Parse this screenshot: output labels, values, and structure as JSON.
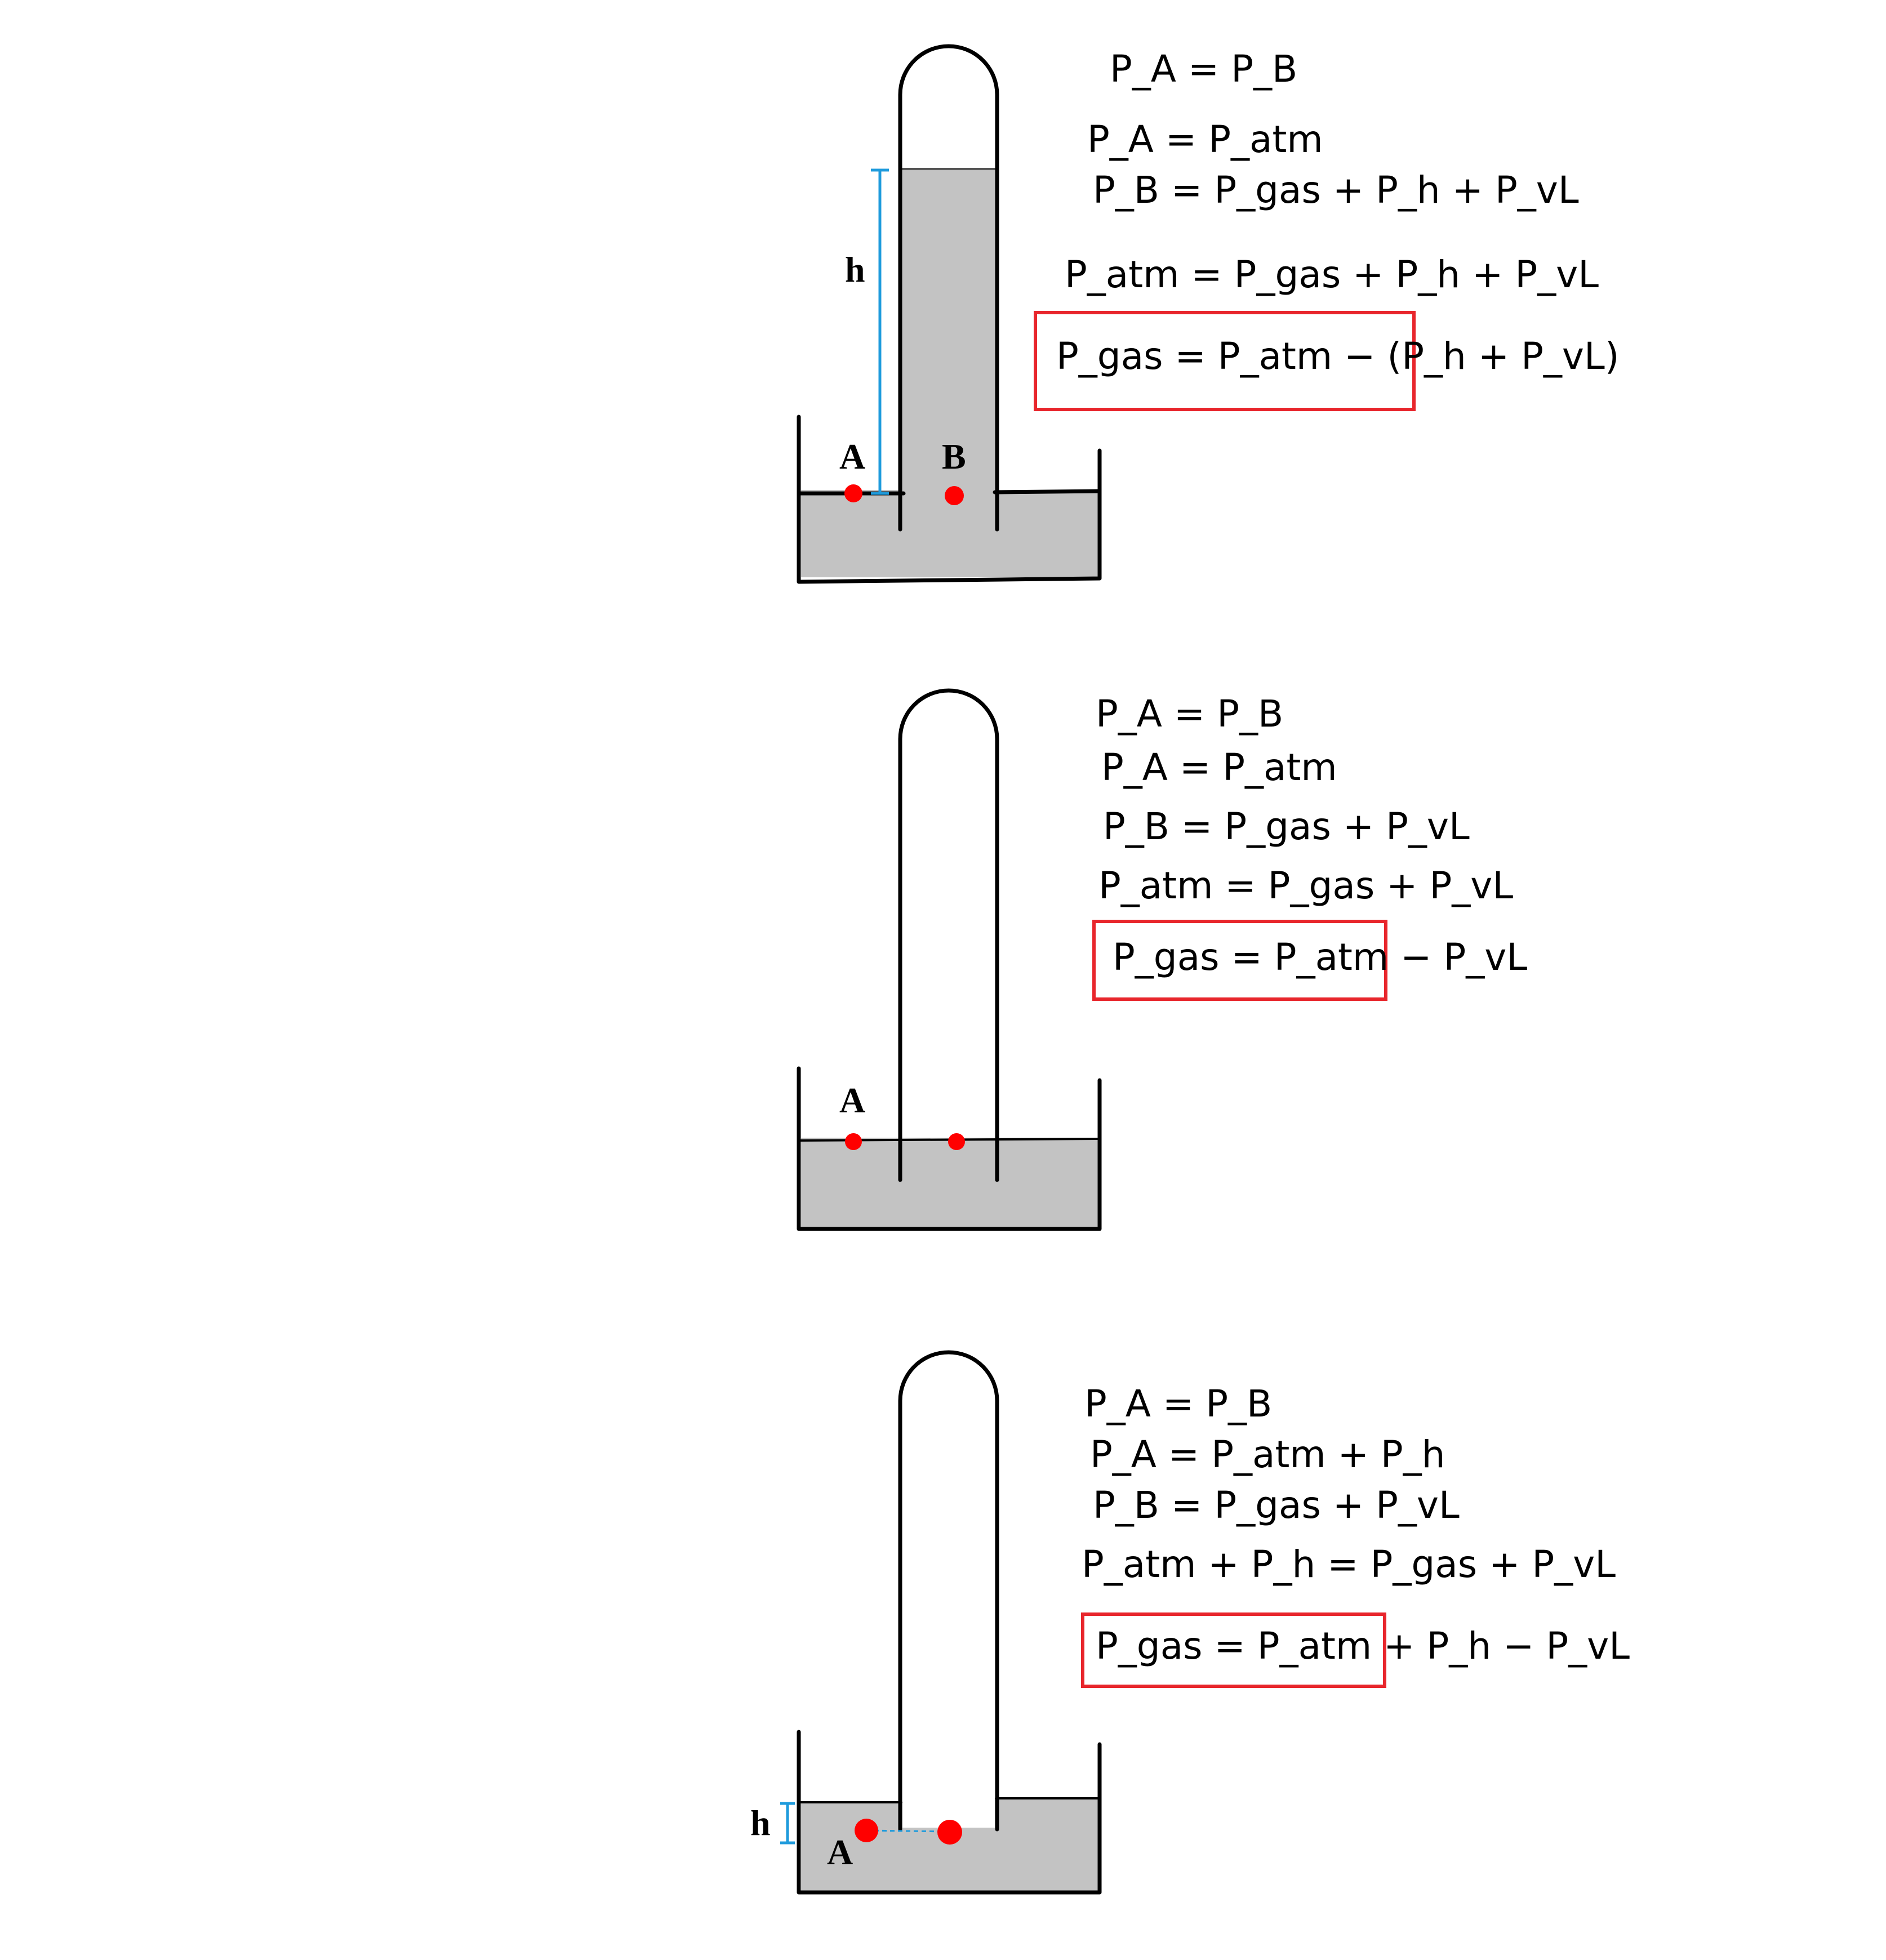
{
  "colors": {
    "liquid": "#c3c3c3",
    "outline": "#000000",
    "measure": "#1f9bdc",
    "point": "#ff0000",
    "box": "#e8262c"
  },
  "panels": [
    {
      "point_labels": [
        "A",
        "B"
      ],
      "height_label": "h",
      "equations": [
        "P_A = P_B",
        "P_A = P_atm",
        "P_B = P_gas + P_h + P_vL",
        "P_atm = P_gas + P_h + P_vL"
      ],
      "result": "P_gas = P_atm − (P_h + P_vL)"
    },
    {
      "point_labels": [
        "A"
      ],
      "equations": [
        "P_A = P_B",
        "P_A = P_atm",
        "P_B = P_gas + P_vL",
        "P_atm = P_gas + P_vL"
      ],
      "result": "P_gas = P_atm − P_vL"
    },
    {
      "point_labels": [
        "A"
      ],
      "height_label": "h",
      "equations": [
        "P_A = P_B",
        "P_A = P_atm + P_h",
        "P_B = P_gas + P_vL",
        "P_atm + P_h = P_gas + P_vL"
      ],
      "result": "P_gas = P_atm + P_h − P_vL"
    }
  ]
}
